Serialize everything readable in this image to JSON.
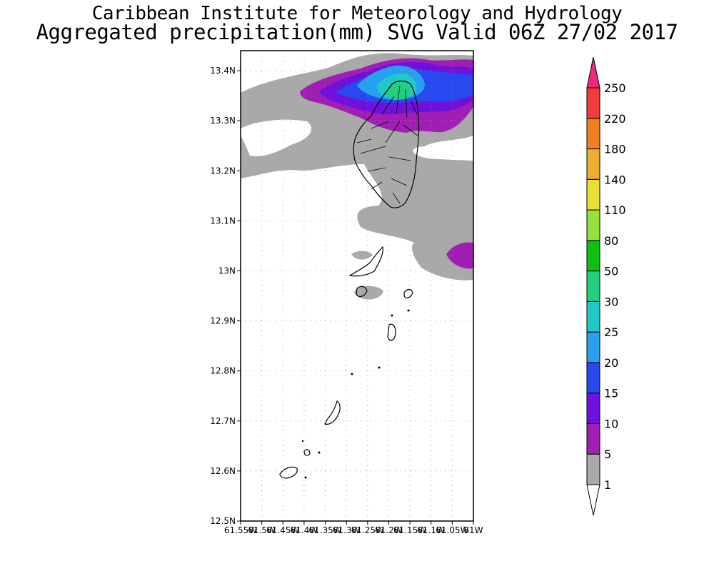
{
  "header": {
    "institute": "Caribbean Institute for Meteorology and Hydrology",
    "product": "Aggregated precipitation(mm) SVG Valid 06Z 27/02 2017"
  },
  "map": {
    "lat_range": [
      12.5,
      13.44
    ],
    "lon_range": [
      -61.55,
      -61.0
    ],
    "lat_ticks": [
      {
        "value": 13.4,
        "label": "13.4N"
      },
      {
        "value": 13.3,
        "label": "13.3N"
      },
      {
        "value": 13.2,
        "label": "13.2N"
      },
      {
        "value": 13.1,
        "label": "13.1N"
      },
      {
        "value": 13.0,
        "label": "13N"
      },
      {
        "value": 12.9,
        "label": "12.9N"
      },
      {
        "value": 12.8,
        "label": "12.8N"
      },
      {
        "value": 12.7,
        "label": "12.7N"
      },
      {
        "value": 12.6,
        "label": "12.6N"
      },
      {
        "value": 12.5,
        "label": "12.5N"
      }
    ],
    "lon_ticks": [
      {
        "value": -61.55,
        "label": "61.55W"
      },
      {
        "value": -61.5,
        "label": "61.5W"
      },
      {
        "value": -61.45,
        "label": "61.45W"
      },
      {
        "value": -61.4,
        "label": "61.4W"
      },
      {
        "value": -61.35,
        "label": "61.35W"
      },
      {
        "value": -61.3,
        "label": "61.3W"
      },
      {
        "value": -61.25,
        "label": "61.25W"
      },
      {
        "value": -61.2,
        "label": "61.2W"
      },
      {
        "value": -61.15,
        "label": "61.15W"
      },
      {
        "value": -61.1,
        "label": "61.1W"
      },
      {
        "value": -61.05,
        "label": "61.05W"
      },
      {
        "value": -61.0,
        "label": "61W"
      }
    ],
    "grid": "dotted"
  },
  "legend": {
    "levels": [
      {
        "label": "1",
        "color": "#ffffff"
      },
      {
        "label": "5",
        "color": "#a9a9a9"
      },
      {
        "label": "10",
        "color": "#a01eb4"
      },
      {
        "label": "15",
        "color": "#7010dc"
      },
      {
        "label": "20",
        "color": "#2848f0"
      },
      {
        "label": "25",
        "color": "#28a0f0"
      },
      {
        "label": "30",
        "color": "#20c8c8"
      },
      {
        "label": "50",
        "color": "#20d080"
      },
      {
        "label": "80",
        "color": "#10c010"
      },
      {
        "label": "110",
        "color": "#98e040"
      },
      {
        "label": "140",
        "color": "#e8e030"
      },
      {
        "label": "180",
        "color": "#e8b030"
      },
      {
        "label": "220",
        "color": "#f08020"
      },
      {
        "label": "250",
        "color": "#f03c3c"
      }
    ],
    "top_arrow_color": "#f0287c",
    "bottom_arrow_color": "#ffffff"
  }
}
